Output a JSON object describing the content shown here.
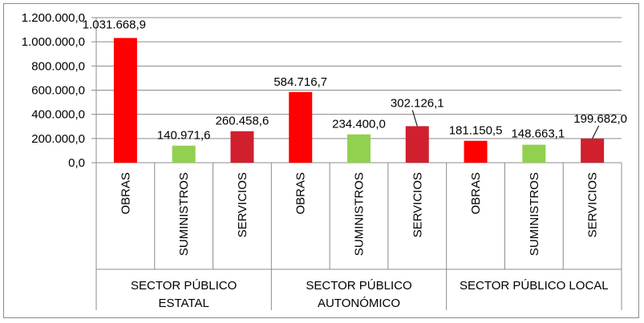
{
  "chart_data": {
    "type": "bar",
    "ylim": [
      0,
      1200000
    ],
    "yticks": [
      0,
      200000,
      400000,
      600000,
      800000,
      1000000,
      1200000
    ],
    "ytick_labels": [
      "0,0",
      "200.000,0",
      "400.000,0",
      "600.000,0",
      "800.000,0",
      "1.000.000,0",
      "1.200.000,0"
    ],
    "grid": true,
    "groups": [
      {
        "label_lines": [
          "SECTOR PÚBLICO",
          "ESTATAL"
        ],
        "bars": [
          {
            "category": "OBRAS",
            "value": 1031668.9,
            "label": "1.031.668,9",
            "color": "#ff0000"
          },
          {
            "category": "SUMINISTROS",
            "value": 140971.6,
            "label": "140.971,6",
            "color": "#92d050"
          },
          {
            "category": "SERVICIOS",
            "value": 260458.6,
            "label": "260.458,6",
            "color": "#d0202e"
          }
        ]
      },
      {
        "label_lines": [
          "SECTOR PÚBLICO",
          "AUTONÓMICO"
        ],
        "bars": [
          {
            "category": "OBRAS",
            "value": 584716.7,
            "label": "584.716,7",
            "color": "#ff0000"
          },
          {
            "category": "SUMINISTROS",
            "value": 234400.0,
            "label": "234.400,0",
            "color": "#92d050"
          },
          {
            "category": "SERVICIOS",
            "value": 302126.1,
            "label": "302.126,1",
            "color": "#d0202e"
          }
        ]
      },
      {
        "label_lines": [
          "SECTOR PÚBLICO LOCAL"
        ],
        "bars": [
          {
            "category": "OBRAS",
            "value": 181150.5,
            "label": "181.150,5",
            "color": "#ff0000"
          },
          {
            "category": "SUMINISTROS",
            "value": 148663.1,
            "label": "148.663,1",
            "color": "#92d050"
          },
          {
            "category": "SERVICIOS",
            "value": 199682.0,
            "label": "199.682,0",
            "color": "#d0202e"
          }
        ]
      }
    ]
  }
}
